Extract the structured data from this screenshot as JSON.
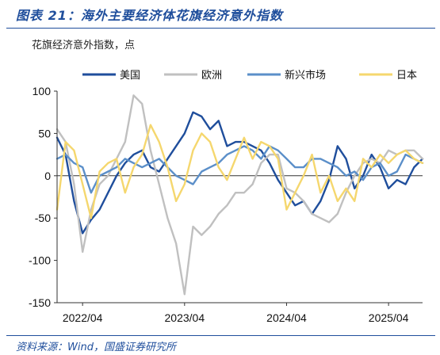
{
  "figure": {
    "title": "图表 21：海外主要经济体花旗经济意外指数",
    "subtitle": "花旗经济意外指数，点",
    "source": "资料来源：Wind，国盛证券研究所"
  },
  "chart_data": {
    "type": "line",
    "title": "图表 21：海外主要经济体花旗经济意外指数",
    "ylabel": "花旗经济意外指数，点",
    "xlabel": "",
    "ylim": [
      -150,
      100
    ],
    "yticks": [
      "100",
      "50",
      "0",
      "-50",
      "-100",
      "-150"
    ],
    "xlim": [
      "2022/01",
      "2025/08"
    ],
    "xticks": [
      "2022/04",
      "2023/04",
      "2024/04",
      "2025/04"
    ],
    "legend_position": "top",
    "grid": false,
    "zero_line": true,
    "series": [
      {
        "name": "美国",
        "color": "#1f4e9c",
        "x": [
          "2022/01",
          "2022/02",
          "2022/03",
          "2022/04",
          "2022/05",
          "2022/06",
          "2022/07",
          "2022/08",
          "2022/09",
          "2022/10",
          "2022/11",
          "2022/12",
          "2023/01",
          "2023/02",
          "2023/03",
          "2023/04",
          "2023/05",
          "2023/06",
          "2023/07",
          "2023/08",
          "2023/09",
          "2023/10",
          "2023/11",
          "2023/12",
          "2024/01",
          "2024/02",
          "2024/03",
          "2024/04",
          "2024/05",
          "2024/06",
          "2024/07",
          "2024/08",
          "2024/09",
          "2024/10",
          "2024/11",
          "2024/12",
          "2025/01",
          "2025/02",
          "2025/03",
          "2025/04",
          "2025/05",
          "2025/06",
          "2025/07",
          "2025/08"
        ],
        "values": [
          45,
          25,
          -30,
          -68,
          -52,
          -40,
          -20,
          0,
          15,
          25,
          30,
          10,
          5,
          20,
          35,
          50,
          75,
          70,
          55,
          65,
          35,
          40,
          40,
          35,
          30,
          15,
          -5,
          -20,
          -35,
          -30,
          -45,
          -30,
          -5,
          35,
          20,
          -15,
          0,
          25,
          10,
          -15,
          -5,
          -10,
          10,
          20
        ]
      },
      {
        "name": "欧洲",
        "color": "#c0c0c0",
        "x": [
          "2022/01",
          "2022/02",
          "2022/03",
          "2022/04",
          "2022/05",
          "2022/06",
          "2022/07",
          "2022/08",
          "2022/09",
          "2022/10",
          "2022/11",
          "2022/12",
          "2023/01",
          "2023/02",
          "2023/03",
          "2023/04",
          "2023/05",
          "2023/06",
          "2023/07",
          "2023/08",
          "2023/09",
          "2023/10",
          "2023/11",
          "2023/12",
          "2024/01",
          "2024/02",
          "2024/03",
          "2024/04",
          "2024/05",
          "2024/06",
          "2024/07",
          "2024/08",
          "2024/09",
          "2024/10",
          "2024/11",
          "2024/12",
          "2025/01",
          "2025/02",
          "2025/03",
          "2025/04",
          "2025/05",
          "2025/06",
          "2025/07",
          "2025/08"
        ],
        "values": [
          55,
          40,
          -10,
          -90,
          -40,
          -10,
          0,
          20,
          40,
          95,
          85,
          30,
          -10,
          -50,
          -80,
          -140,
          -60,
          -70,
          -60,
          -45,
          -35,
          -20,
          -20,
          -10,
          15,
          25,
          25,
          -15,
          -20,
          -30,
          -45,
          -50,
          -55,
          -45,
          -20,
          0,
          15,
          20,
          15,
          30,
          25,
          30,
          30,
          20
        ]
      },
      {
        "name": "新兴市场",
        "color": "#5b8fc9",
        "x": [
          "2022/01",
          "2022/02",
          "2022/03",
          "2022/04",
          "2022/05",
          "2022/06",
          "2022/07",
          "2022/08",
          "2022/09",
          "2022/10",
          "2022/11",
          "2022/12",
          "2023/01",
          "2023/02",
          "2023/03",
          "2023/04",
          "2023/05",
          "2023/06",
          "2023/07",
          "2023/08",
          "2023/09",
          "2023/10",
          "2023/11",
          "2023/12",
          "2024/01",
          "2024/02",
          "2024/03",
          "2024/04",
          "2024/05",
          "2024/06",
          "2024/07",
          "2024/08",
          "2024/09",
          "2024/10",
          "2024/11",
          "2024/12",
          "2025/01",
          "2025/02",
          "2025/03",
          "2025/04",
          "2025/05",
          "2025/06",
          "2025/07",
          "2025/08"
        ],
        "values": [
          20,
          25,
          15,
          10,
          -20,
          0,
          5,
          10,
          20,
          15,
          10,
          15,
          20,
          10,
          0,
          -5,
          -10,
          5,
          10,
          15,
          25,
          30,
          35,
          30,
          20,
          35,
          30,
          20,
          10,
          10,
          20,
          20,
          15,
          10,
          0,
          5,
          -5,
          10,
          15,
          0,
          5,
          25,
          20,
          15
        ]
      },
      {
        "name": "日本",
        "color": "#f5d76e",
        "x": [
          "2022/01",
          "2022/02",
          "2022/03",
          "2022/04",
          "2022/05",
          "2022/06",
          "2022/07",
          "2022/08",
          "2022/09",
          "2022/10",
          "2022/11",
          "2022/12",
          "2023/01",
          "2023/02",
          "2023/03",
          "2023/04",
          "2023/05",
          "2023/06",
          "2023/07",
          "2023/08",
          "2023/09",
          "2023/10",
          "2023/11",
          "2023/12",
          "2024/01",
          "2024/02",
          "2024/03",
          "2024/04",
          "2024/05",
          "2024/06",
          "2024/07",
          "2024/08",
          "2024/09",
          "2024/10",
          "2024/11",
          "2024/12",
          "2025/01",
          "2025/02",
          "2025/03",
          "2025/04",
          "2025/05",
          "2025/06",
          "2025/07",
          "2025/08"
        ],
        "values": [
          -40,
          40,
          30,
          -10,
          -50,
          5,
          15,
          20,
          -20,
          10,
          25,
          60,
          40,
          10,
          -30,
          -10,
          30,
          50,
          40,
          10,
          -5,
          20,
          45,
          20,
          40,
          35,
          20,
          -40,
          -20,
          0,
          25,
          -20,
          0,
          -30,
          -15,
          -30,
          20,
          10,
          25,
          15,
          25,
          30,
          20,
          15
        ]
      }
    ]
  }
}
